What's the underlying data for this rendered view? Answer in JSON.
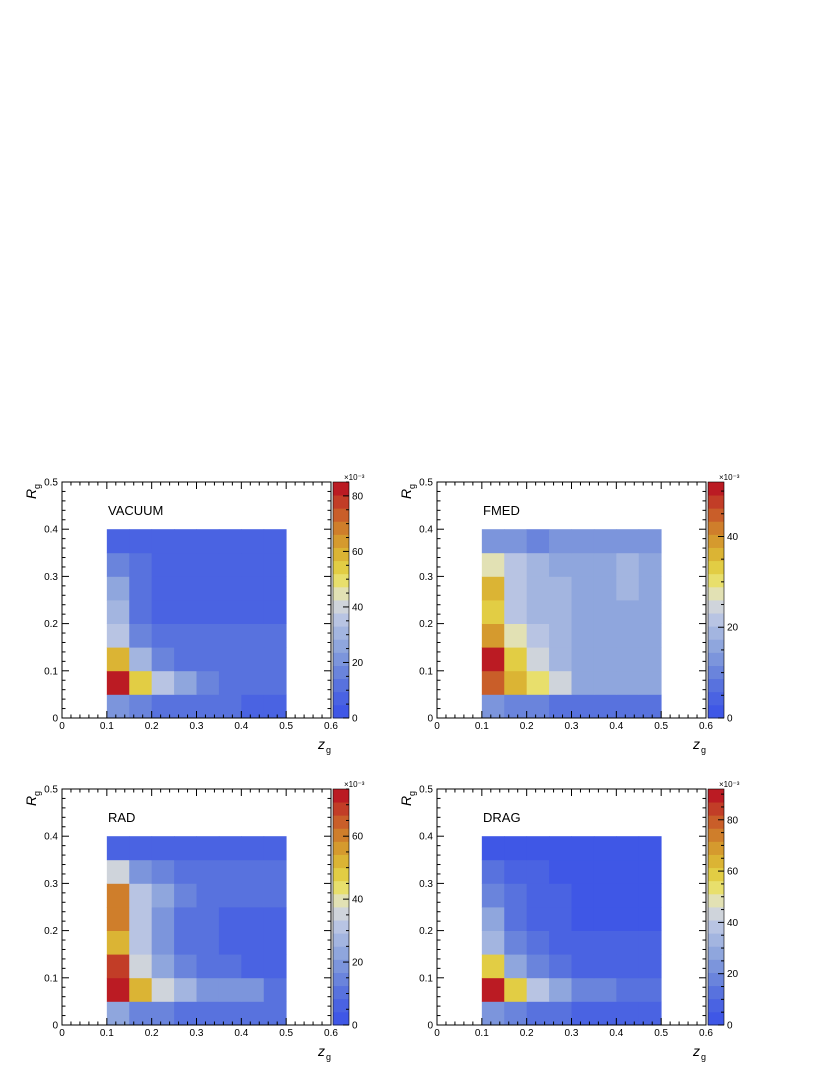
{
  "chart_data": [
    {
      "type": "heatmap",
      "label": "VACUUM",
      "xlabel": "z",
      "xlabel_sub": "g",
      "ylabel": "R",
      "ylabel_sub": "g",
      "xlim": [
        0,
        0.6
      ],
      "ylim": [
        0,
        0.5
      ],
      "x_ticks": [
        "0",
        "0.1",
        "0.2",
        "0.3",
        "0.4",
        "0.5",
        "0.6"
      ],
      "y_ticks": [
        "0",
        "0.1",
        "0.2",
        "0.3",
        "0.4",
        "0.5"
      ],
      "x_bins": [
        0.1,
        0.15,
        0.2,
        0.25,
        0.3,
        0.35,
        0.4,
        0.45,
        0.5
      ],
      "y_bins": [
        0,
        0.05,
        0.1,
        0.15,
        0.2,
        0.25,
        0.3,
        0.35,
        0.4
      ],
      "values_x1e3": [
        [
          22,
          16,
          13,
          12,
          11,
          10,
          9,
          8
        ],
        [
          85,
          56,
          37,
          24,
          16,
          14,
          14,
          14
        ],
        [
          58,
          30,
          18,
          13,
          13,
          11,
          11,
          11
        ],
        [
          37,
          17,
          11,
          11,
          10,
          10,
          10,
          10
        ],
        [
          30,
          13,
          9,
          9,
          9,
          9,
          9,
          9
        ],
        [
          24,
          12,
          9,
          9,
          9,
          9,
          9,
          9
        ],
        [
          18,
          10,
          9,
          9,
          9,
          6,
          6,
          6
        ],
        [
          5,
          5,
          5,
          5,
          5,
          5,
          5,
          5
        ]
      ],
      "colorbar": {
        "exponent": "×10⁻³",
        "max": 85,
        "ticks": [
          "0",
          "20",
          "40",
          "60",
          "80"
        ],
        "tick_values": [
          0,
          20,
          40,
          60,
          80
        ]
      }
    },
    {
      "type": "heatmap",
      "label": "FMED",
      "xlabel": "z",
      "xlabel_sub": "g",
      "ylabel": "R",
      "ylabel_sub": "g",
      "xlim": [
        0,
        0.6
      ],
      "ylim": [
        0,
        0.5
      ],
      "x_ticks": [
        "0",
        "0.1",
        "0.2",
        "0.3",
        "0.4",
        "0.5",
        "0.6"
      ],
      "y_ticks": [
        "0",
        "0.1",
        "0.2",
        "0.3",
        "0.4",
        "0.5"
      ],
      "x_bins": [
        0.1,
        0.15,
        0.2,
        0.25,
        0.3,
        0.35,
        0.4,
        0.45,
        0.5
      ],
      "y_bins": [
        0,
        0.05,
        0.1,
        0.15,
        0.2,
        0.25,
        0.3,
        0.35,
        0.4
      ],
      "values_x1e3": [
        [
          12,
          9,
          9,
          7,
          6,
          6,
          6,
          6
        ],
        [
          45,
          35,
          29,
          24,
          17,
          17,
          17,
          17
        ],
        [
          51,
          34,
          24,
          20,
          17,
          17,
          17,
          17
        ],
        [
          40,
          28,
          21,
          18,
          17,
          17,
          17,
          17
        ],
        [
          34,
          22,
          19,
          18,
          17,
          17,
          17,
          17
        ],
        [
          35,
          23,
          19,
          19,
          17,
          17,
          18,
          17
        ],
        [
          28,
          21,
          20,
          17,
          17,
          15,
          20,
          15
        ],
        [
          13,
          13,
          9,
          12,
          12,
          12,
          12,
          12
        ]
      ],
      "colorbar": {
        "exponent": "×10⁻³",
        "max": 52,
        "ticks": [
          "0",
          "20",
          "40"
        ],
        "tick_values": [
          0,
          20,
          40
        ]
      }
    },
    {
      "type": "heatmap",
      "label": "RAD",
      "xlabel": "z",
      "xlabel_sub": "g",
      "ylabel": "R",
      "ylabel_sub": "g",
      "xlim": [
        0,
        0.6
      ],
      "ylim": [
        0,
        0.5
      ],
      "x_ticks": [
        "0",
        "0.1",
        "0.2",
        "0.3",
        "0.4",
        "0.5",
        "0.6"
      ],
      "y_ticks": [
        "0",
        "0.1",
        "0.2",
        "0.3",
        "0.4",
        "0.5"
      ],
      "x_bins": [
        0.1,
        0.15,
        0.2,
        0.25,
        0.3,
        0.35,
        0.4,
        0.45,
        0.5
      ],
      "y_bins": [
        0,
        0.05,
        0.1,
        0.15,
        0.2,
        0.25,
        0.3,
        0.35,
        0.4
      ],
      "values_x1e3": [
        [
          22,
          16,
          14,
          12,
          9,
          9,
          9,
          9
        ],
        [
          75,
          50,
          35,
          26,
          20,
          17,
          17,
          9
        ],
        [
          70,
          36,
          24,
          14,
          12,
          9,
          6,
          6
        ],
        [
          53,
          31,
          18,
          12,
          11,
          7,
          7,
          7
        ],
        [
          60,
          30,
          17,
          12,
          12,
          7,
          7,
          7
        ],
        [
          62,
          33,
          22,
          15,
          10,
          10,
          10,
          10
        ],
        [
          37,
          20,
          14,
          10,
          10,
          10,
          10,
          10
        ],
        [
          5,
          5,
          5,
          5,
          5,
          5,
          5,
          5
        ]
      ],
      "colorbar": {
        "exponent": "×10⁻³",
        "max": 75,
        "ticks": [
          "0",
          "20",
          "40",
          "60"
        ],
        "tick_values": [
          0,
          20,
          40,
          60
        ]
      }
    },
    {
      "type": "heatmap",
      "label": "DRAG",
      "xlabel": "z",
      "xlabel_sub": "g",
      "ylabel": "R",
      "ylabel_sub": "g",
      "xlim": [
        0,
        0.6
      ],
      "ylim": [
        0,
        0.5
      ],
      "x_ticks": [
        "0",
        "0.1",
        "0.2",
        "0.3",
        "0.4",
        "0.5",
        "0.6"
      ],
      "y_ticks": [
        "0",
        "0.1",
        "0.2",
        "0.3",
        "0.4",
        "0.5"
      ],
      "x_bins": [
        0.1,
        0.15,
        0.2,
        0.25,
        0.3,
        0.35,
        0.4,
        0.45,
        0.5
      ],
      "y_bins": [
        0,
        0.05,
        0.1,
        0.15,
        0.2,
        0.25,
        0.3,
        0.35,
        0.4
      ],
      "values_x1e3": [
        [
          22,
          18,
          15,
          12,
          10,
          10,
          10,
          10
        ],
        [
          90,
          58,
          38,
          26,
          20,
          18,
          14,
          14
        ],
        [
          58,
          28,
          17,
          12,
          10,
          10,
          9,
          9
        ],
        [
          33,
          16,
          11,
          9,
          9,
          9,
          6,
          6
        ],
        [
          26,
          13,
          10,
          9,
          5,
          5,
          5,
          5
        ],
        [
          20,
          11,
          10,
          10,
          5,
          5,
          5,
          5
        ],
        [
          12,
          7,
          7,
          5,
          5,
          5,
          5,
          5
        ],
        [
          4,
          4,
          4,
          4,
          4,
          4,
          4,
          4
        ]
      ],
      "colorbar": {
        "exponent": "×10⁻³",
        "max": 92,
        "ticks": [
          "0",
          "20",
          "40",
          "60",
          "80"
        ],
        "tick_values": [
          0,
          20,
          40,
          60,
          80
        ]
      }
    }
  ],
  "palette": [
    "#3f57e6",
    "#4a63e2",
    "#5872de",
    "#6a84dc",
    "#7c95dc",
    "#8fa6dd",
    "#a3b5e0",
    "#b8c4e3",
    "#cfd4db",
    "#e2e1b4",
    "#e8df6c",
    "#e2cd44",
    "#dbb434",
    "#d59a2e",
    "#cf7e2b",
    "#c95e29",
    "#c23d27",
    "#bb1b23"
  ]
}
